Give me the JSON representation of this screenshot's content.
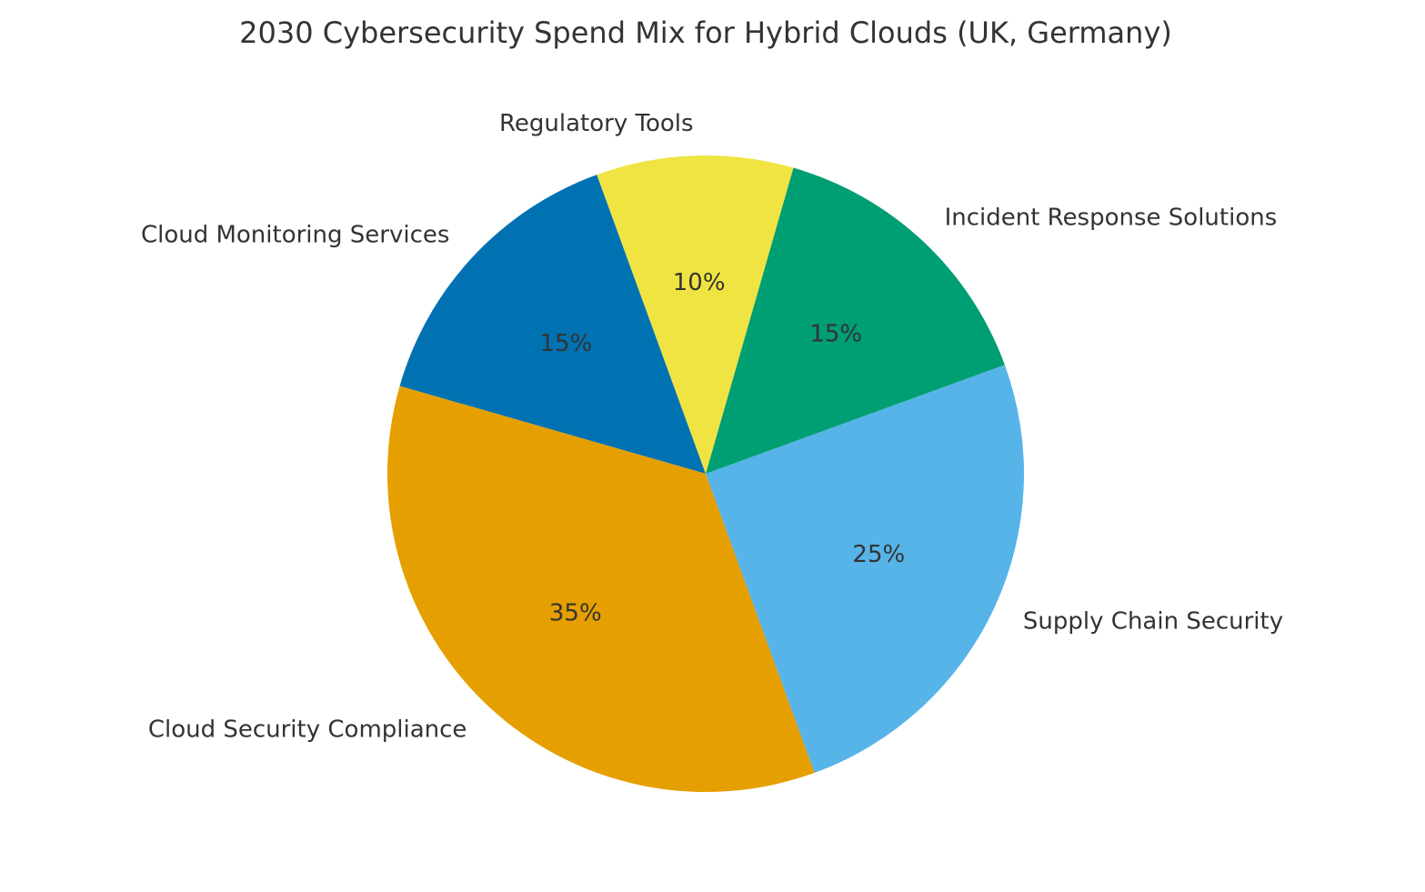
{
  "chart_data": {
    "type": "pie",
    "title": "2030 Cybersecurity Spend Mix for Hybrid Clouds (UK, Germany)",
    "slices": [
      {
        "label": "Cloud Monitoring Services",
        "value": 15,
        "pct_label": "15%",
        "color": "#0072B2"
      },
      {
        "label": "Cloud Security Compliance",
        "value": 35,
        "pct_label": "35%",
        "color": "#E69F00"
      },
      {
        "label": "Supply Chain Security",
        "value": 25,
        "pct_label": "25%",
        "color": "#56B4E9"
      },
      {
        "label": "Incident Response Solutions",
        "value": 15,
        "pct_label": "15%",
        "color": "#009E73"
      },
      {
        "label": "Regulatory Tools",
        "value": 10,
        "pct_label": "10%",
        "color": "#F0E442"
      }
    ],
    "start_angle_deg": 110,
    "direction": "counterclockwise",
    "legend": "none"
  }
}
